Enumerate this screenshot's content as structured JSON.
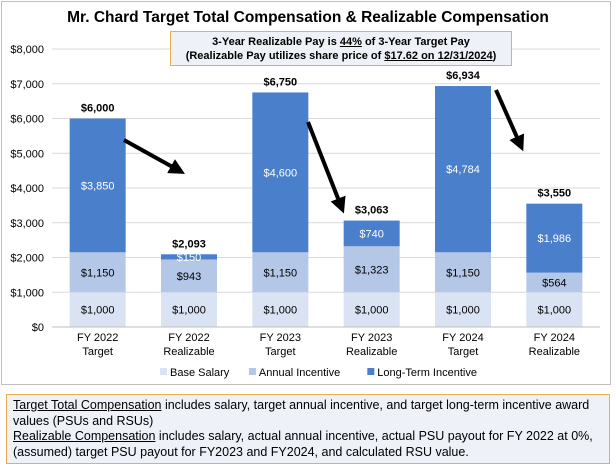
{
  "chart_data": {
    "type": "stacked-bar",
    "title": "Mr. Chard Target Total Compensation & Realizable Compensation",
    "annotation": {
      "line1_prefix": "3-Year Realizable Pay is ",
      "line1_pct": "44%",
      "line1_suffix": " of 3-Year Target Pay",
      "line2_prefix": "(Realizable Pay utilizes share price of ",
      "line2_value": "$17.62 on 12/31/2024",
      "line2_suffix": ")"
    },
    "categories": [
      [
        "FY 2022",
        "Target"
      ],
      [
        "FY 2022",
        "Realizable"
      ],
      [
        "FY 2023",
        "Target"
      ],
      [
        "FY 2023",
        "Realizable"
      ],
      [
        "FY 2024",
        "Target"
      ],
      [
        "FY 2024",
        "Realizable"
      ]
    ],
    "series": [
      {
        "name": "Base Salary",
        "color": "#dae3f3",
        "values": [
          1000,
          1000,
          1000,
          1000,
          1000,
          1000
        ],
        "labels": [
          "$1,000",
          "$1,000",
          "$1,000",
          "$1,000",
          "$1,000",
          "$1,000"
        ]
      },
      {
        "name": "Annual Incentive",
        "color": "#b4c7e7",
        "values": [
          1150,
          943,
          1150,
          1323,
          1150,
          564
        ],
        "labels": [
          "$1,150",
          "$943",
          "$1,150",
          "$1,323",
          "$1,150",
          "$564"
        ]
      },
      {
        "name": "Long-Term Incentive",
        "color": "#4a7fcb",
        "values": [
          3850,
          150,
          4600,
          740,
          4784,
          1986
        ],
        "labels": [
          "$3,850",
          "$150",
          "$4,600",
          "$740",
          "$4,784",
          "$1,986"
        ]
      }
    ],
    "totals": [
      "$6,000",
      "$2,093",
      "$6,750",
      "$3,063",
      "$6,934",
      "$3,550"
    ],
    "ylim": [
      0,
      8000
    ],
    "yticks": [
      "$0",
      "$1,000",
      "$2,000",
      "$3,000",
      "$4,000",
      "$5,000",
      "$6,000",
      "$7,000",
      "$8,000"
    ],
    "grid": true,
    "legend": "bottom"
  },
  "footnote": {
    "term1": "Target Total Compensation",
    "text1": " includes salary, target annual incentive, and target long-term incentive award values (PSUs and RSUs)",
    "term2": "Realizable Compensation",
    "text2": " includes salary, actual annual incentive, actual PSU payout for FY 2022 at 0%, (assumed) target PSU payout for FY2023 and FY2024, and calculated RSU value."
  }
}
